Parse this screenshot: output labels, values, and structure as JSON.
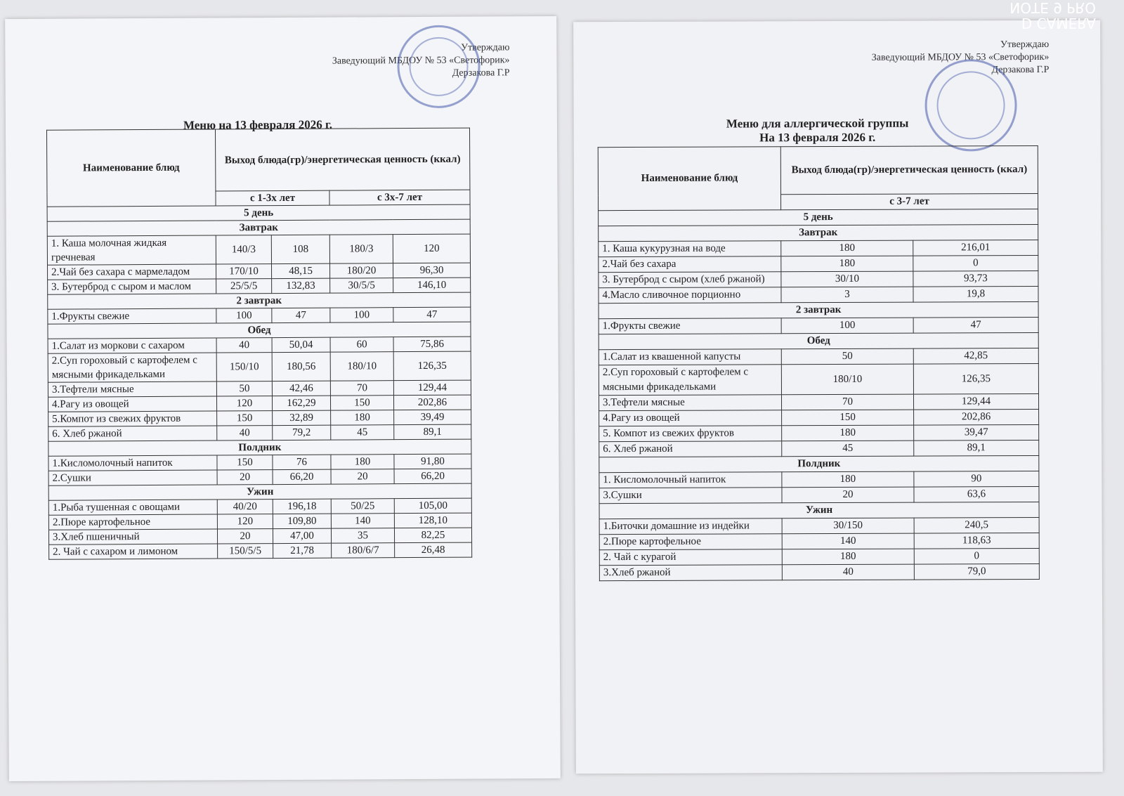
{
  "watermark": [
    "D CAMERA",
    "NOTE 9 PRO"
  ],
  "left_sheet": {
    "approval": [
      "Утверждаю",
      "Заведующий МБДОУ № 53 «Светофорик»",
      "Дерзакова Г.Р"
    ],
    "title": [
      "Меню на 13 февраля 2026 г."
    ],
    "table": {
      "header_name": "Наименование блюд",
      "header_output": "Выход блюда(гр)/энергетическая ценность (ккал)",
      "ages": [
        "с 1-3х лет",
        "с 3х-7 лет"
      ],
      "day": "5  день",
      "sections": [
        {
          "name": "Завтрак",
          "rows": [
            [
              "1. Каша молочная жидкая гречневая",
              "140/3",
              "108",
              "180/3",
              "120"
            ],
            [
              "2.Чай без сахара с мармеладом",
              "170/10",
              "48,15",
              "180/20",
              "96,30"
            ],
            [
              "3. Бутерброд с сыром и маслом",
              "25/5/5",
              "132,83",
              "30/5/5",
              "146,10"
            ]
          ]
        },
        {
          "name": "2 завтрак",
          "rows": [
            [
              "1.Фрукты свежие",
              "100",
              "47",
              "100",
              "47"
            ]
          ]
        },
        {
          "name": "Обед",
          "rows": [
            [
              "1.Салат из моркови с сахаром",
              "40",
              "50,04",
              "60",
              "75,86"
            ],
            [
              "2.Суп гороховый с картофелем с мясными фрикадельками",
              "150/10",
              "180,56",
              "180/10",
              "126,35"
            ],
            [
              "3.Тефтели мясные",
              "50",
              "42,46",
              "70",
              "129,44"
            ],
            [
              "4.Рагу из овощей",
              "120",
              "162,29",
              "150",
              "202,86"
            ],
            [
              "5.Компот из свежих фруктов",
              "150",
              "32,89",
              "180",
              "39,49"
            ],
            [
              "6. Хлеб ржаной",
              "40",
              "79,2",
              "45",
              "89,1"
            ]
          ]
        },
        {
          "name": "Полдник",
          "rows": [
            [
              "1.Кисломолочный напиток",
              "150",
              "76",
              "180",
              "91,80"
            ],
            [
              "2.Сушки",
              "20",
              "66,20",
              "20",
              "66,20"
            ]
          ]
        },
        {
          "name": "Ужин",
          "rows": [
            [
              "1.Рыба тушенная с овощами",
              "40/20",
              "196,18",
              "50/25",
              "105,00"
            ],
            [
              "2.Пюре картофельное",
              "120",
              "109,80",
              "140",
              "128,10"
            ],
            [
              "3.Хлеб пшеничный",
              "20",
              "47,00",
              "35",
              "82,25"
            ],
            [
              "2. Чай с сахаром и лимоном",
              "150/5/5",
              "21,78",
              "180/6/7",
              "26,48"
            ]
          ]
        }
      ]
    }
  },
  "right_sheet": {
    "approval": [
      "Утверждаю",
      "Заведующий МБДОУ № 53 «Светофорик»",
      "Дерзакова Г.Р"
    ],
    "title": [
      "Меню для аллергической группы",
      "На 13 февраля 2026 г."
    ],
    "table": {
      "header_name": "Наименование блюд",
      "header_output": "Выход блюда(гр)/энергетическая ценность (ккал)",
      "ages": [
        "с 3-7 лет"
      ],
      "day": "5 день",
      "sections": [
        {
          "name": "Завтрак",
          "rows": [
            [
              "1. Каша кукурузная на воде",
              "180",
              "216,01"
            ],
            [
              "2.Чай без сахара",
              "180",
              "0"
            ],
            [
              "3. Бутерброд с сыром (хлеб ржаной)",
              "30/10",
              "93,73"
            ],
            [
              "4.Масло сливочное порционно",
              "3",
              "19,8"
            ]
          ]
        },
        {
          "name": "2 завтрак",
          "rows": [
            [
              "1.Фрукты свежие",
              "100",
              "47"
            ]
          ]
        },
        {
          "name": "Обед",
          "rows": [
            [
              "1.Салат из квашенной капусты",
              "50",
              "42,85"
            ],
            [
              "2.Суп гороховый с картофелем с мясными фрикадельками",
              "180/10",
              "126,35"
            ],
            [
              "3.Тефтели мясные",
              "70",
              "129,44"
            ],
            [
              "4.Рагу из овощей",
              "150",
              "202,86"
            ],
            [
              "5. Компот из свежих фруктов",
              "180",
              "39,47"
            ],
            [
              "6. Хлеб ржаной",
              "45",
              "89,1"
            ]
          ]
        },
        {
          "name": "Полдник",
          "rows": [
            [
              "1. Кисломолочный напиток",
              "180",
              "90"
            ],
            [
              "3.Сушки",
              "20",
              "63,6"
            ]
          ]
        },
        {
          "name": "Ужин",
          "rows": [
            [
              "1.Биточки домашние из индейки",
              "30/150",
              "240,5"
            ],
            [
              "2.Пюре картофельное",
              "140",
              "118,63"
            ],
            [
              "2. Чай с курагой",
              "180",
              "0"
            ],
            [
              "3.Хлеб ржаной",
              "40",
              "79,0"
            ]
          ]
        }
      ]
    }
  }
}
